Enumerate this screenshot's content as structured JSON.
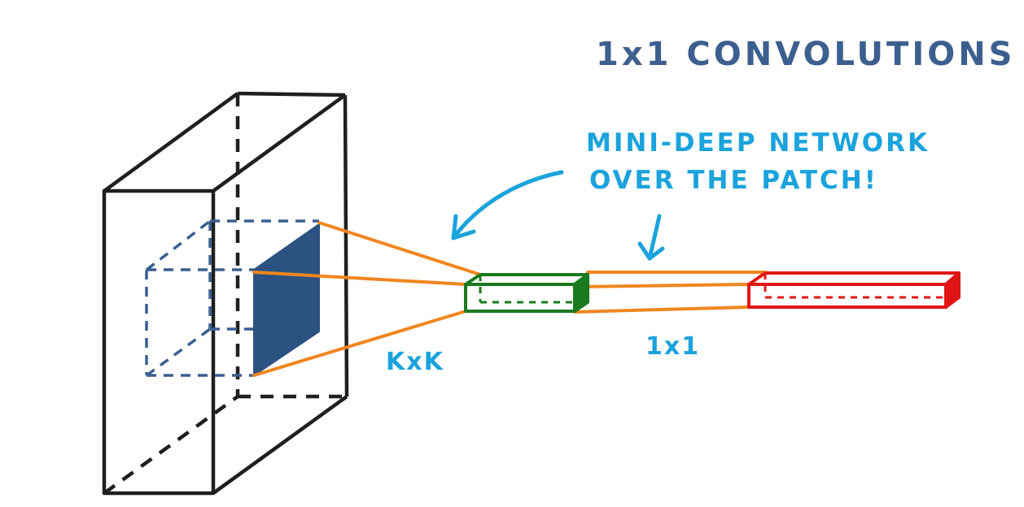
{
  "title": "1x1 CONVOLUTIONS",
  "annotation": {
    "line1": "MINI-DEEP NETWORK",
    "line2": "OVER THE PATCH!"
  },
  "labels": {
    "kernel": "KxK",
    "one_by_one": "1x1"
  },
  "colors": {
    "title": "#3d5f8f",
    "annotation": "#1aa3dc",
    "volume_outline": "#1f1f1f",
    "patch_outline": "#3a5f91",
    "patch_fill": "#2c5282",
    "connector": "#f0861e",
    "green_column": "#1a7a1e",
    "red_column": "#e01616",
    "label_blue": "#1aa3dc"
  }
}
